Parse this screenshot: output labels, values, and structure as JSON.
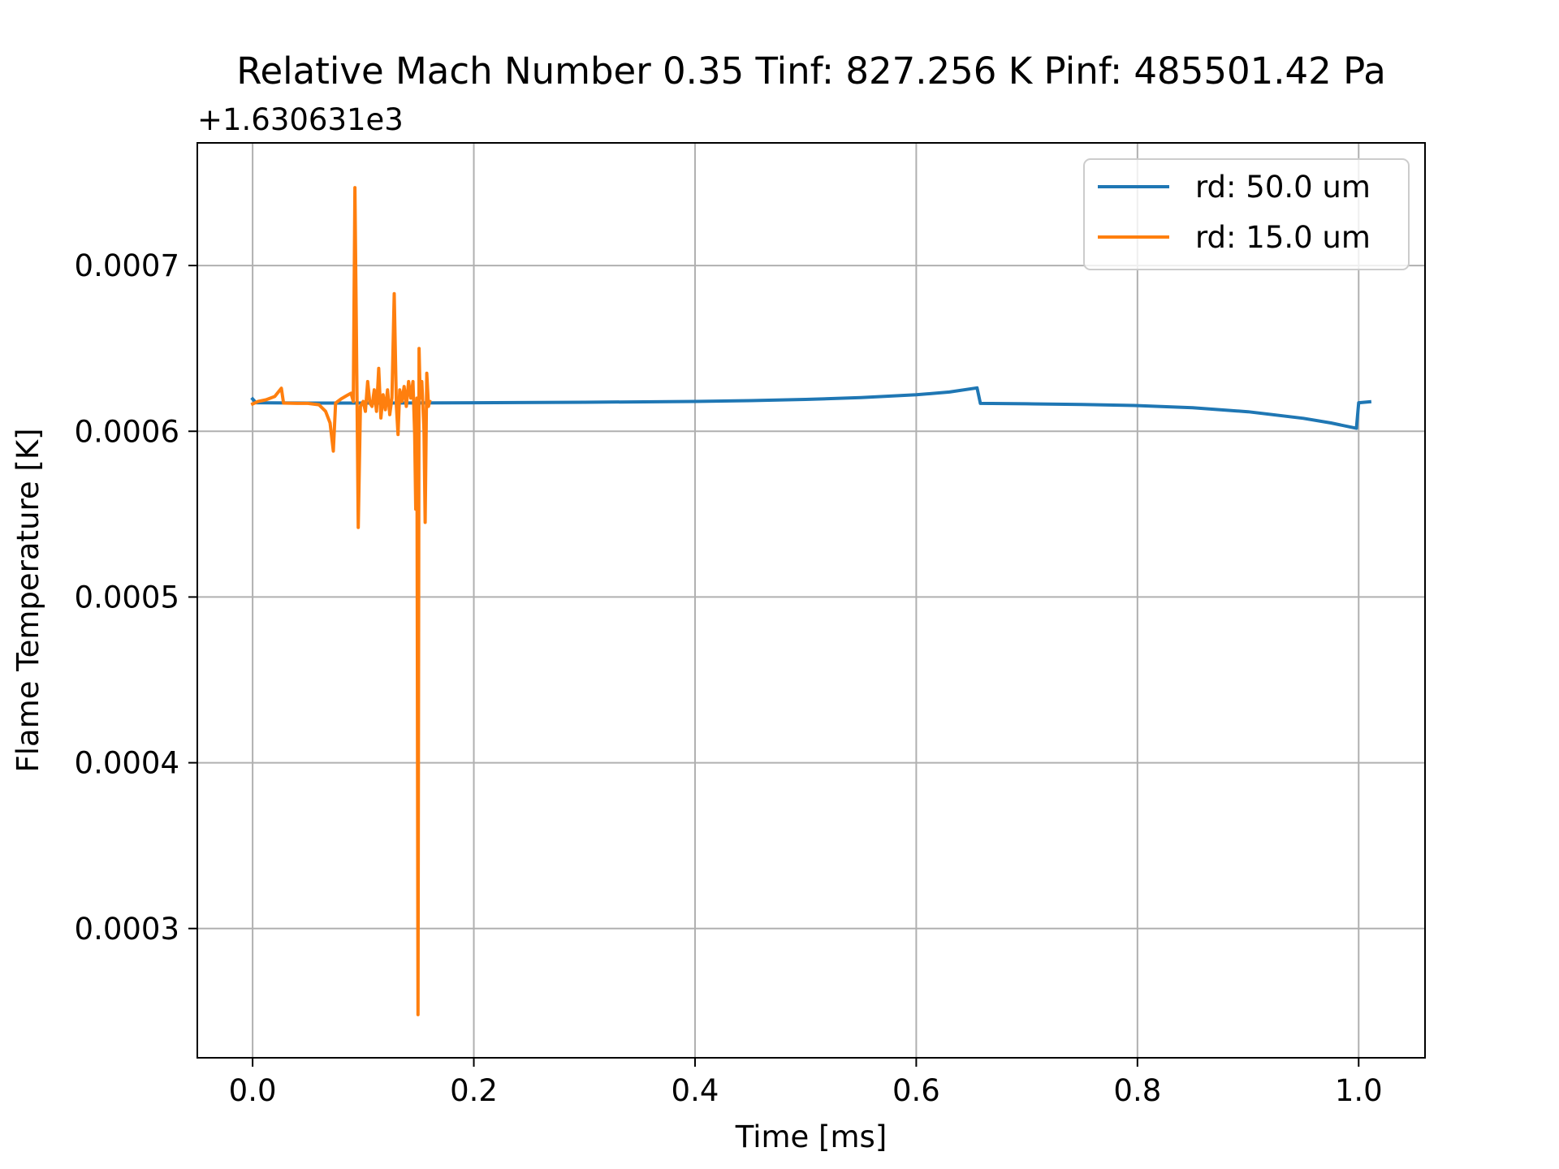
{
  "chart_data": {
    "type": "line",
    "title": "Relative Mach Number 0.35 Tinf: 827.256 K Pinf: 485501.42 Pa",
    "xlabel": "Time [ms]",
    "ylabel": "Flame Temperature [K]",
    "y_offset_label": "+1.630631e3",
    "xlim": [
      -0.05,
      1.06
    ],
    "ylim": [
      0.000222,
      0.000774
    ],
    "xticks": [
      0.0,
      0.2,
      0.4,
      0.6,
      0.8,
      1.0
    ],
    "xtick_labels": [
      "0.0",
      "0.2",
      "0.4",
      "0.6",
      "0.8",
      "1.0"
    ],
    "yticks": [
      0.0003,
      0.0004,
      0.0005,
      0.0006,
      0.0007
    ],
    "ytick_labels": [
      "0.0003",
      "0.0004",
      "0.0005",
      "0.0006",
      "0.0007"
    ],
    "grid": true,
    "legend_position": "top-right",
    "series": [
      {
        "name": "rd: 50.0 um",
        "color": "#1f77b4",
        "points": [
          [
            0.0,
            0.0006195
          ],
          [
            0.003,
            0.0006172
          ],
          [
            0.05,
            0.000617
          ],
          [
            0.1,
            0.000617
          ],
          [
            0.2,
            0.0006172
          ],
          [
            0.3,
            0.0006175
          ],
          [
            0.4,
            0.000618
          ],
          [
            0.45,
            0.0006185
          ],
          [
            0.5,
            0.0006192
          ],
          [
            0.55,
            0.0006203
          ],
          [
            0.6,
            0.000622
          ],
          [
            0.63,
            0.0006237
          ],
          [
            0.655,
            0.0006262
          ],
          [
            0.658,
            0.0006168
          ],
          [
            0.7,
            0.0006166
          ],
          [
            0.75,
            0.0006162
          ],
          [
            0.8,
            0.0006155
          ],
          [
            0.85,
            0.0006142
          ],
          [
            0.9,
            0.0006118
          ],
          [
            0.95,
            0.0006078
          ],
          [
            0.975,
            0.000605
          ],
          [
            0.998,
            0.0006018
          ],
          [
            1.0,
            0.0006172
          ],
          [
            1.01,
            0.0006178
          ]
        ]
      },
      {
        "name": "rd: 15.0 um",
        "color": "#ff7f0e",
        "points": [
          [
            0.0,
            0.0006165
          ],
          [
            0.005,
            0.000618
          ],
          [
            0.012,
            0.000619
          ],
          [
            0.02,
            0.000621
          ],
          [
            0.026,
            0.000626
          ],
          [
            0.028,
            0.000617
          ],
          [
            0.04,
            0.0006168
          ],
          [
            0.05,
            0.0006168
          ],
          [
            0.06,
            0.000616
          ],
          [
            0.066,
            0.000612
          ],
          [
            0.07,
            0.000605
          ],
          [
            0.073,
            0.000588
          ],
          [
            0.075,
            0.000617
          ],
          [
            0.08,
            0.0006195
          ],
          [
            0.085,
            0.0006215
          ],
          [
            0.089,
            0.000623
          ],
          [
            0.091,
            0.000618
          ],
          [
            0.0925,
            0.000747
          ],
          [
            0.0945,
            0.000615
          ],
          [
            0.0955,
            0.000542
          ],
          [
            0.0975,
            0.000615
          ],
          [
            0.1,
            0.000618
          ],
          [
            0.102,
            0.000612
          ],
          [
            0.104,
            0.00063
          ],
          [
            0.106,
            0.000617
          ],
          [
            0.108,
            0.000615
          ],
          [
            0.11,
            0.000625
          ],
          [
            0.112,
            0.000612
          ],
          [
            0.114,
            0.000638
          ],
          [
            0.116,
            0.000608
          ],
          [
            0.118,
            0.000622
          ],
          [
            0.12,
            0.000613
          ],
          [
            0.122,
            0.000625
          ],
          [
            0.124,
            0.00061
          ],
          [
            0.126,
            0.00062
          ],
          [
            0.128,
            0.000683
          ],
          [
            0.13,
            0.000615
          ],
          [
            0.1315,
            0.000598
          ],
          [
            0.133,
            0.000625
          ],
          [
            0.135,
            0.000618
          ],
          [
            0.137,
            0.000627
          ],
          [
            0.139,
            0.000615
          ],
          [
            0.141,
            0.00063
          ],
          [
            0.143,
            0.00062
          ],
          [
            0.145,
            0.00063
          ],
          [
            0.1465,
            0.000598
          ],
          [
            0.1475,
            0.000553
          ],
          [
            0.1485,
            0.00062
          ],
          [
            0.1495,
            0.000248
          ],
          [
            0.1505,
            0.00065
          ],
          [
            0.1515,
            0.00062
          ],
          [
            0.153,
            0.00063
          ],
          [
            0.155,
            0.0006
          ],
          [
            0.156,
            0.000545
          ],
          [
            0.1575,
            0.000635
          ],
          [
            0.159,
            0.000615
          ],
          [
            0.16,
            0.000618
          ]
        ]
      }
    ]
  }
}
